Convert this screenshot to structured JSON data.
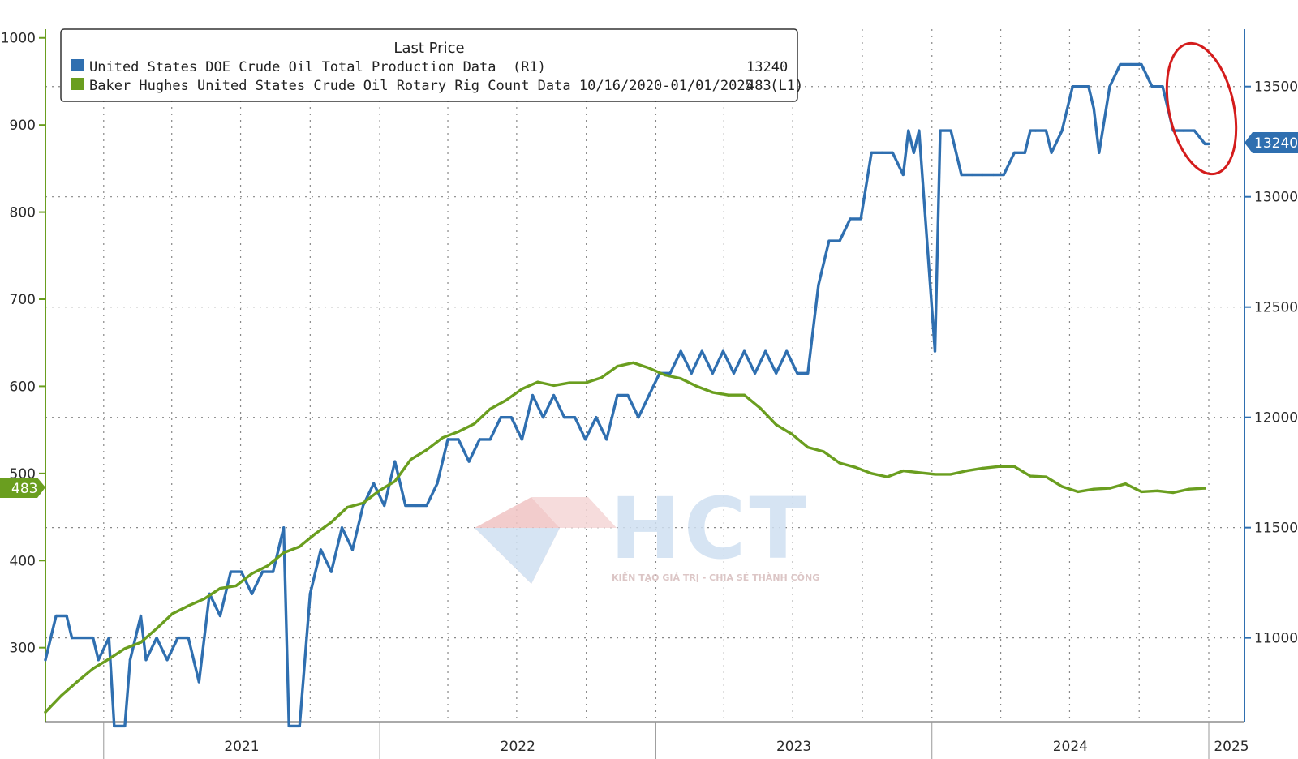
{
  "colors": {
    "production": "#2f6fb0",
    "rigs": "#6a9e1f",
    "grid": "#888888",
    "highlight": "#d41c1c",
    "watermark_red": "#e9b7b7",
    "watermark_blue": "#c9dbee"
  },
  "legend": {
    "title": "Last Price",
    "entries": [
      {
        "label": "United States DOE Crude Oil Total Production Data  (R1)",
        "value": "13240"
      },
      {
        "label": "Baker Hughes United States Crude Oil Rotary Rig Count Data 10/16/2020-01/01/2025  (L1)",
        "value": "483"
      }
    ]
  },
  "watermark": {
    "logo": "HCT",
    "tagline": "KIẾN TẠO GIÁ TRỊ - CHIA SẺ THÀNH CÔNG"
  },
  "markers": {
    "left": "483",
    "right": "13240"
  },
  "chart_data": {
    "type": "line",
    "x_range": [
      "2020-10-16",
      "2025-01-01"
    ],
    "x_tick_labels": [
      "2021",
      "2022",
      "2023",
      "2024",
      "2025"
    ],
    "y_left": {
      "ticks": [
        "300",
        "400",
        "500",
        "600",
        "700",
        "800",
        "900",
        "1000"
      ],
      "range": [
        215,
        1010
      ]
    },
    "y_right": {
      "ticks": [
        "11000",
        "11500",
        "12000",
        "12500",
        "13000",
        "13500"
      ],
      "range": [
        10620,
        13760
      ]
    },
    "grid": true,
    "legend_position": "top-left",
    "series": [
      {
        "name": "United States DOE Crude Oil Total Production Data",
        "axis": "right",
        "points": [
          [
            "2020-10-16",
            10900
          ],
          [
            "2020-10-30",
            11100
          ],
          [
            "2020-11-13",
            11100
          ],
          [
            "2020-11-20",
            11000
          ],
          [
            "2020-12-18",
            11000
          ],
          [
            "2020-12-25",
            10900
          ],
          [
            "2021-01-08",
            11000
          ],
          [
            "2021-01-15",
            10600
          ],
          [
            "2021-01-29",
            10600
          ],
          [
            "2021-02-05",
            10900
          ],
          [
            "2021-02-19",
            11100
          ],
          [
            "2021-02-26",
            10900
          ],
          [
            "2021-03-12",
            11000
          ],
          [
            "2021-03-26",
            10900
          ],
          [
            "2021-04-09",
            11000
          ],
          [
            "2021-04-23",
            11000
          ],
          [
            "2021-05-07",
            10800
          ],
          [
            "2021-05-21",
            11200
          ],
          [
            "2021-06-04",
            11100
          ],
          [
            "2021-06-18",
            11300
          ],
          [
            "2021-07-02",
            11300
          ],
          [
            "2021-07-16",
            11200
          ],
          [
            "2021-07-30",
            11300
          ],
          [
            "2021-08-13",
            11300
          ],
          [
            "2021-08-27",
            11500
          ],
          [
            "2021-09-03",
            10600
          ],
          [
            "2021-09-17",
            10600
          ],
          [
            "2021-10-01",
            11200
          ],
          [
            "2021-10-15",
            11400
          ],
          [
            "2021-10-29",
            11300
          ],
          [
            "2021-11-12",
            11500
          ],
          [
            "2021-11-26",
            11400
          ],
          [
            "2021-12-10",
            11600
          ],
          [
            "2021-12-24",
            11700
          ],
          [
            "2022-01-07",
            11600
          ],
          [
            "2022-01-21",
            11800
          ],
          [
            "2022-02-04",
            11600
          ],
          [
            "2022-02-18",
            11600
          ],
          [
            "2022-03-04",
            11600
          ],
          [
            "2022-03-18",
            11700
          ],
          [
            "2022-04-01",
            11900
          ],
          [
            "2022-04-15",
            11900
          ],
          [
            "2022-04-29",
            11800
          ],
          [
            "2022-05-13",
            11900
          ],
          [
            "2022-05-27",
            11900
          ],
          [
            "2022-06-10",
            12000
          ],
          [
            "2022-06-24",
            12000
          ],
          [
            "2022-07-08",
            11900
          ],
          [
            "2022-07-22",
            12100
          ],
          [
            "2022-08-05",
            12000
          ],
          [
            "2022-08-19",
            12100
          ],
          [
            "2022-09-02",
            12000
          ],
          [
            "2022-09-16",
            12000
          ],
          [
            "2022-09-30",
            11900
          ],
          [
            "2022-10-14",
            12000
          ],
          [
            "2022-10-28",
            11900
          ],
          [
            "2022-11-11",
            12100
          ],
          [
            "2022-11-25",
            12100
          ],
          [
            "2022-12-09",
            12000
          ],
          [
            "2022-12-23",
            12100
          ],
          [
            "2023-01-06",
            12200
          ],
          [
            "2023-01-20",
            12200
          ],
          [
            "2023-02-03",
            12300
          ],
          [
            "2023-02-17",
            12200
          ],
          [
            "2023-03-03",
            12300
          ],
          [
            "2023-03-17",
            12200
          ],
          [
            "2023-03-31",
            12300
          ],
          [
            "2023-04-14",
            12200
          ],
          [
            "2023-04-28",
            12300
          ],
          [
            "2023-05-12",
            12200
          ],
          [
            "2023-05-26",
            12300
          ],
          [
            "2023-06-09",
            12200
          ],
          [
            "2023-06-23",
            12300
          ],
          [
            "2023-07-07",
            12200
          ],
          [
            "2023-07-21",
            12200
          ],
          [
            "2023-08-04",
            12600
          ],
          [
            "2023-08-18",
            12800
          ],
          [
            "2023-09-01",
            12800
          ],
          [
            "2023-09-15",
            12900
          ],
          [
            "2023-09-29",
            12900
          ],
          [
            "2023-10-13",
            13200
          ],
          [
            "2023-10-27",
            13200
          ],
          [
            "2023-11-10",
            13200
          ],
          [
            "2023-11-24",
            13100
          ],
          [
            "2023-12-01",
            13300
          ],
          [
            "2023-12-08",
            13200
          ],
          [
            "2023-12-15",
            13300
          ],
          [
            "2024-01-05",
            12300
          ],
          [
            "2024-01-12",
            13300
          ],
          [
            "2024-01-26",
            13300
          ],
          [
            "2024-02-09",
            13100
          ],
          [
            "2024-02-23",
            13100
          ],
          [
            "2024-03-08",
            13100
          ],
          [
            "2024-03-22",
            13100
          ],
          [
            "2024-04-05",
            13100
          ],
          [
            "2024-04-19",
            13200
          ],
          [
            "2024-05-03",
            13200
          ],
          [
            "2024-05-10",
            13300
          ],
          [
            "2024-05-17",
            13300
          ],
          [
            "2024-05-31",
            13300
          ],
          [
            "2024-06-07",
            13200
          ],
          [
            "2024-06-21",
            13300
          ],
          [
            "2024-07-05",
            13500
          ],
          [
            "2024-07-19",
            13500
          ],
          [
            "2024-07-26",
            13500
          ],
          [
            "2024-08-02",
            13400
          ],
          [
            "2024-08-09",
            13200
          ],
          [
            "2024-08-23",
            13500
          ],
          [
            "2024-09-06",
            13600
          ],
          [
            "2024-09-20",
            13600
          ],
          [
            "2024-10-04",
            13600
          ],
          [
            "2024-10-18",
            13500
          ],
          [
            "2024-11-01",
            13500
          ],
          [
            "2024-11-15",
            13300
          ],
          [
            "2024-11-29",
            13300
          ],
          [
            "2024-12-13",
            13300
          ],
          [
            "2024-12-27",
            13240
          ],
          [
            "2025-01-01",
            13240
          ]
        ]
      },
      {
        "name": "Baker Hughes United States Crude Oil Rotary Rig Count Data",
        "axis": "left",
        "points": [
          [
            "2020-10-16",
            226
          ],
          [
            "2020-11-06",
            245
          ],
          [
            "2020-11-27",
            261
          ],
          [
            "2020-12-18",
            276
          ],
          [
            "2021-01-08",
            287
          ],
          [
            "2021-01-29",
            299
          ],
          [
            "2021-02-19",
            306
          ],
          [
            "2021-03-12",
            322
          ],
          [
            "2021-04-02",
            339
          ],
          [
            "2021-04-23",
            348
          ],
          [
            "2021-05-14",
            356
          ],
          [
            "2021-06-04",
            368
          ],
          [
            "2021-06-25",
            371
          ],
          [
            "2021-07-16",
            385
          ],
          [
            "2021-08-06",
            394
          ],
          [
            "2021-08-27",
            409
          ],
          [
            "2021-09-17",
            416
          ],
          [
            "2021-10-08",
            431
          ],
          [
            "2021-10-29",
            444
          ],
          [
            "2021-11-19",
            461
          ],
          [
            "2021-12-10",
            466
          ],
          [
            "2021-12-31",
            480
          ],
          [
            "2022-01-21",
            491
          ],
          [
            "2022-02-11",
            516
          ],
          [
            "2022-03-04",
            527
          ],
          [
            "2022-03-25",
            541
          ],
          [
            "2022-04-15",
            548
          ],
          [
            "2022-05-06",
            557
          ],
          [
            "2022-05-27",
            574
          ],
          [
            "2022-06-17",
            584
          ],
          [
            "2022-07-08",
            597
          ],
          [
            "2022-07-29",
            605
          ],
          [
            "2022-08-19",
            601
          ],
          [
            "2022-09-09",
            604
          ],
          [
            "2022-09-30",
            604
          ],
          [
            "2022-10-21",
            610
          ],
          [
            "2022-11-11",
            623
          ],
          [
            "2022-12-02",
            627
          ],
          [
            "2022-12-23",
            621
          ],
          [
            "2023-01-13",
            613
          ],
          [
            "2023-02-03",
            609
          ],
          [
            "2023-02-24",
            600
          ],
          [
            "2023-03-17",
            593
          ],
          [
            "2023-04-07",
            590
          ],
          [
            "2023-04-28",
            590
          ],
          [
            "2023-05-19",
            575
          ],
          [
            "2023-06-09",
            556
          ],
          [
            "2023-06-30",
            545
          ],
          [
            "2023-07-21",
            530
          ],
          [
            "2023-08-11",
            525
          ],
          [
            "2023-09-01",
            512
          ],
          [
            "2023-09-22",
            507
          ],
          [
            "2023-10-13",
            500
          ],
          [
            "2023-11-03",
            496
          ],
          [
            "2023-11-24",
            503
          ],
          [
            "2023-12-15",
            501
          ],
          [
            "2024-01-05",
            499
          ],
          [
            "2024-01-26",
            499
          ],
          [
            "2024-02-16",
            503
          ],
          [
            "2024-03-08",
            506
          ],
          [
            "2024-03-29",
            508
          ],
          [
            "2024-04-19",
            508
          ],
          [
            "2024-05-10",
            497
          ],
          [
            "2024-05-31",
            496
          ],
          [
            "2024-06-21",
            485
          ],
          [
            "2024-07-12",
            479
          ],
          [
            "2024-08-02",
            482
          ],
          [
            "2024-08-23",
            483
          ],
          [
            "2024-09-13",
            488
          ],
          [
            "2024-10-04",
            479
          ],
          [
            "2024-10-25",
            480
          ],
          [
            "2024-11-15",
            478
          ],
          [
            "2024-12-06",
            482
          ],
          [
            "2024-12-27",
            483
          ]
        ]
      }
    ],
    "annotations": [
      {
        "type": "ellipse",
        "description": "red highlight around late-2024 production peak"
      }
    ]
  }
}
